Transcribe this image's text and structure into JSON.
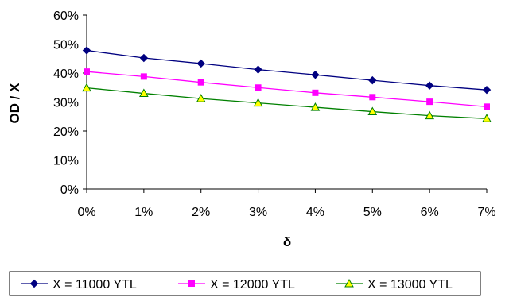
{
  "chart_data": {
    "type": "line",
    "title": "",
    "xlabel": "δ",
    "ylabel": "OD / X",
    "x": [
      0,
      1,
      2,
      3,
      4,
      5,
      6,
      7
    ],
    "x_tick_labels": [
      "0%",
      "1%",
      "2%",
      "3%",
      "4%",
      "5%",
      "6%",
      "7%"
    ],
    "ylim": [
      0,
      60
    ],
    "y_ticks": [
      0,
      10,
      20,
      30,
      40,
      50,
      60
    ],
    "y_tick_labels": [
      "0%",
      "10%",
      "20%",
      "30%",
      "40%",
      "50%",
      "60%"
    ],
    "grid": false,
    "legend_position": "bottom",
    "series": [
      {
        "name": "X = 11000 YTL",
        "values": [
          47.8,
          45.2,
          43.3,
          41.2,
          39.4,
          37.5,
          35.7,
          34.2
        ],
        "color": "#000080",
        "marker": "diamond"
      },
      {
        "name": "X = 12000 YTL",
        "values": [
          40.5,
          38.8,
          36.8,
          35.0,
          33.2,
          31.7,
          30.1,
          28.4
        ],
        "color": "#ff00ff",
        "marker": "square"
      },
      {
        "name": "X = 13000 YTL",
        "values": [
          34.9,
          33.0,
          31.2,
          29.7,
          28.2,
          26.7,
          25.3,
          24.3
        ],
        "color": "#008000",
        "marker_fill": "#ffff00",
        "marker": "triangle"
      }
    ]
  }
}
